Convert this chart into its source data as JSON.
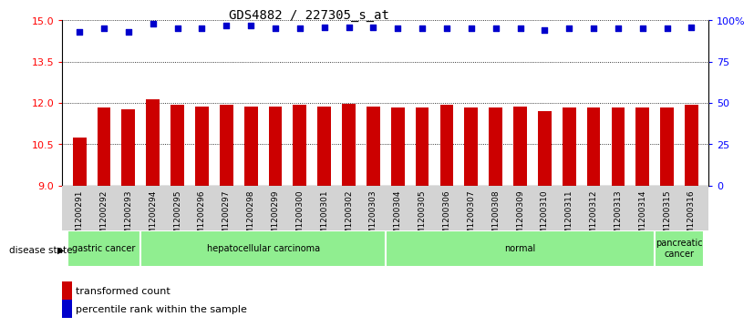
{
  "title": "GDS4882 / 227305_s_at",
  "samples": [
    "GSM1200291",
    "GSM1200292",
    "GSM1200293",
    "GSM1200294",
    "GSM1200295",
    "GSM1200296",
    "GSM1200297",
    "GSM1200298",
    "GSM1200299",
    "GSM1200300",
    "GSM1200301",
    "GSM1200302",
    "GSM1200303",
    "GSM1200304",
    "GSM1200305",
    "GSM1200306",
    "GSM1200307",
    "GSM1200308",
    "GSM1200309",
    "GSM1200310",
    "GSM1200311",
    "GSM1200312",
    "GSM1200313",
    "GSM1200314",
    "GSM1200315",
    "GSM1200316"
  ],
  "bar_values": [
    10.73,
    11.82,
    11.77,
    12.12,
    11.93,
    11.88,
    11.93,
    11.87,
    11.87,
    11.95,
    11.87,
    11.98,
    11.87,
    11.82,
    11.82,
    11.92,
    11.82,
    11.82,
    11.87,
    11.72,
    11.82,
    11.82,
    11.82,
    11.82,
    11.82,
    11.92
  ],
  "percentile_values": [
    93,
    95,
    93,
    98,
    95,
    95,
    97,
    97,
    95,
    95,
    96,
    96,
    96,
    95,
    95,
    95,
    95,
    95,
    95,
    94,
    95,
    95,
    95,
    95,
    95,
    96
  ],
  "bar_color": "#CC0000",
  "dot_color": "#0000CC",
  "ylim_left": [
    9,
    15
  ],
  "ylim_right": [
    0,
    100
  ],
  "yticks_left": [
    9,
    10.5,
    12,
    13.5,
    15
  ],
  "yticks_right": [
    0,
    25,
    50,
    75,
    100
  ],
  "groups": [
    {
      "label": "gastric cancer",
      "start": 0,
      "end": 3
    },
    {
      "label": "hepatocellular carcinoma",
      "start": 3,
      "end": 13
    },
    {
      "label": "normal",
      "start": 13,
      "end": 24
    },
    {
      "label": "pancreatic\ncancer",
      "start": 24,
      "end": 26
    }
  ],
  "group_color": "#90EE90",
  "group_border_color": "#FFFFFF",
  "disease_state_label": "disease state",
  "legend_bar_label": "transformed count",
  "legend_dot_label": "percentile rank within the sample",
  "plot_bg": "#FFFFFF",
  "xtick_bg": "#D3D3D3",
  "dotted_line_color": "#000000",
  "title_fontsize": 10,
  "bar_width": 0.55
}
